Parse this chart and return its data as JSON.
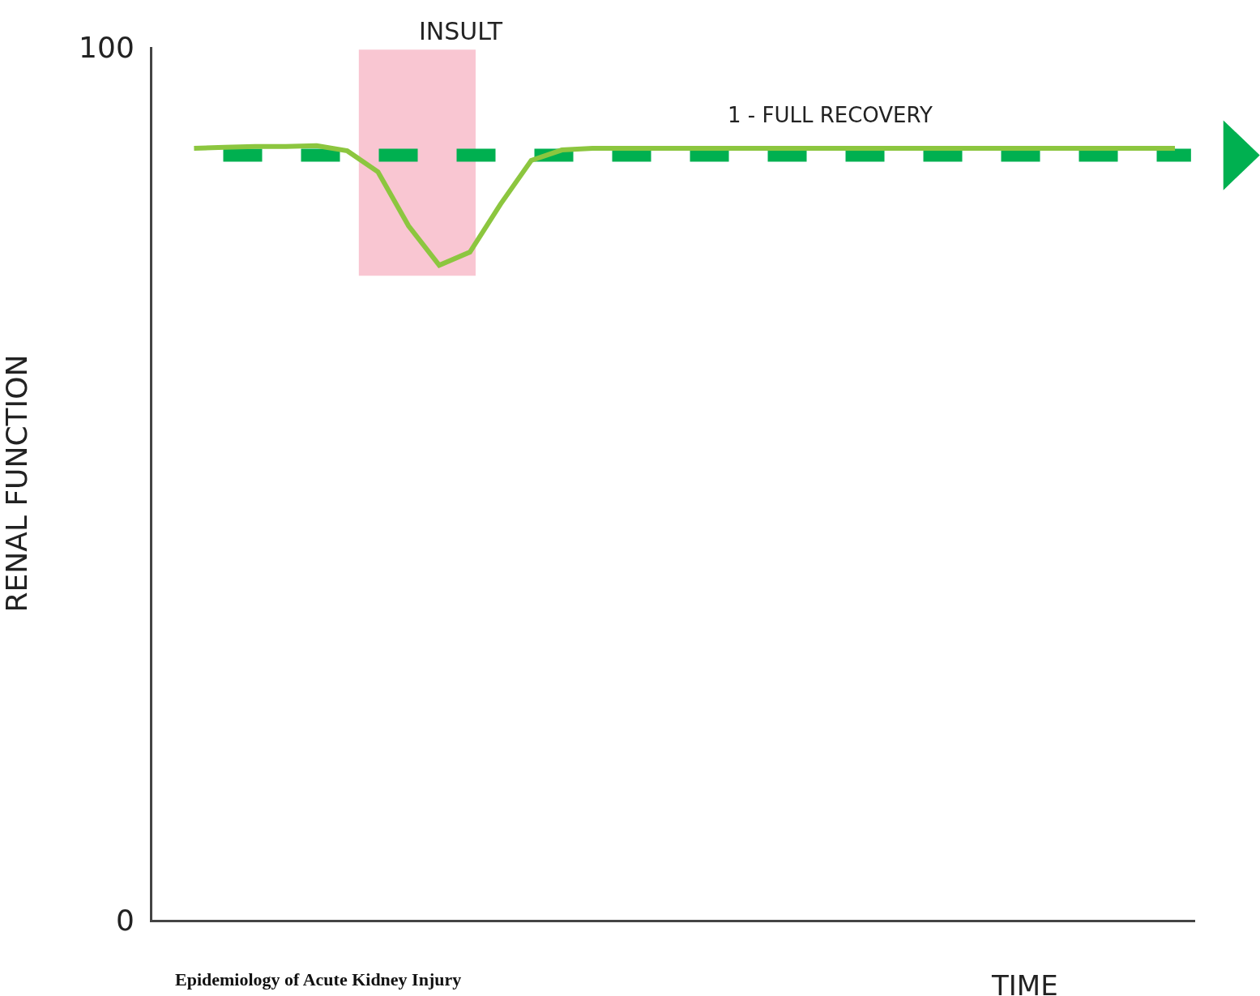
{
  "chart_data": {
    "type": "line",
    "xlabel": "TIME",
    "ylabel": "RENAL FUNCTION",
    "categories": [
      null,
      null,
      null,
      null,
      null,
      null,
      null,
      null,
      null,
      null,
      null,
      null,
      null,
      null,
      null,
      null,
      null,
      null,
      null,
      null,
      null,
      null,
      null,
      null,
      null,
      null,
      null,
      null,
      null,
      null,
      null,
      null,
      null
    ],
    "series": [
      {
        "color": "#8cc63f",
        "values": [
          88.4,
          88.5,
          88.6,
          88.6,
          88.7,
          88.1,
          85.7,
          79.5,
          75.0,
          76.5,
          82.0,
          87.0,
          88.2,
          88.4,
          88.4,
          88.4,
          88.4,
          88.4,
          88.4,
          88.4,
          88.4,
          88.4,
          88.4,
          88.4,
          88.4,
          88.4,
          88.4,
          88.4,
          88.4,
          88.4,
          88.4,
          88.4,
          88.4
        ]
      }
    ],
    "ylim": [
      0,
      100
    ],
    "yticks": [
      0,
      100
    ],
    "tick_labels": "y",
    "marker": "none",
    "line_style": "solid",
    "ref_lines": [
      {
        "axis": "y",
        "value": 87.6,
        "label": "1 - FULL RECOVERY",
        "color": "#00b050",
        "line_style": "dashed"
      }
    ],
    "annotations": [
      "INSULT",
      "Epidemiology of Acute Kidney Injury"
    ]
  }
}
